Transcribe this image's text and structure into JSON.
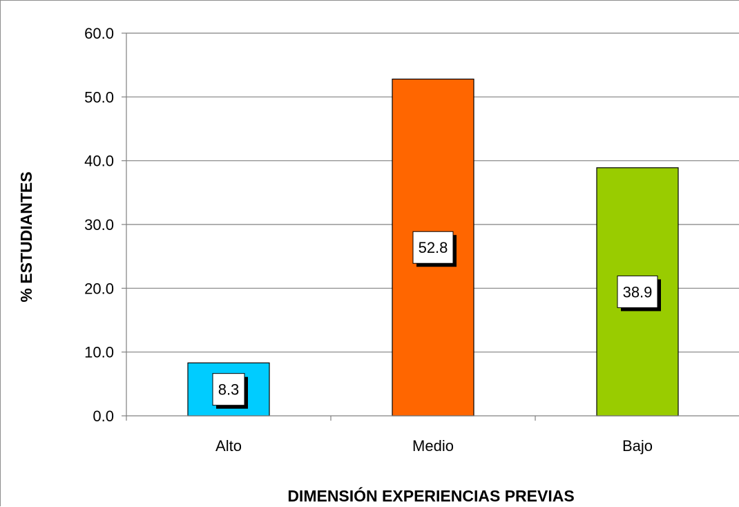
{
  "chart_data": {
    "type": "bar",
    "title": "",
    "xlabel": "DIMENSIÓN EXPERIENCIAS PREVIAS",
    "ylabel": "% ESTUDIANTES",
    "categories": [
      "Alto",
      "Medio",
      "Bajo"
    ],
    "values": [
      8.3,
      52.8,
      38.9
    ],
    "data_labels": [
      "8.3",
      "52.8",
      "38.9"
    ],
    "bar_colors": [
      "#00ccff",
      "#ff6600",
      "#99cc00"
    ],
    "ylim": [
      0,
      60
    ],
    "yticks": [
      0,
      10,
      20,
      30,
      40,
      50,
      60
    ],
    "ytick_labels": [
      "0.0",
      "10.0",
      "20.0",
      "30.0",
      "40.0",
      "50.0",
      "60.0"
    ],
    "grid": true,
    "legend": "none"
  }
}
